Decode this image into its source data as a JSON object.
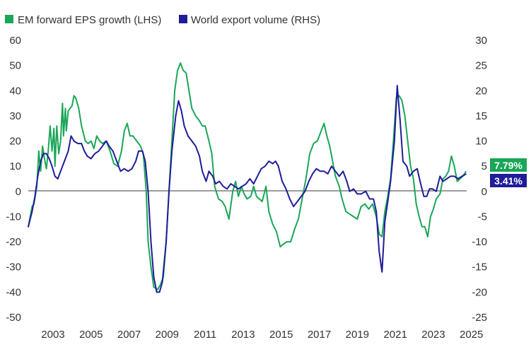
{
  "chart_data": {
    "type": "line",
    "title": "",
    "x_ticks": [
      "2003",
      "2005",
      "2007",
      "2009",
      "2011",
      "2013",
      "2015",
      "2017",
      "2019",
      "2021",
      "2023",
      "2025"
    ],
    "xlim": [
      2001.7,
      2024.75
    ],
    "left_axis": {
      "ylim": [
        -50,
        60
      ],
      "ticks": [
        "60",
        "50",
        "40",
        "30",
        "20",
        "10",
        "0",
        "-10",
        "-20",
        "-30",
        "-40",
        "-50"
      ]
    },
    "right_axis": {
      "ylim": [
        -25,
        30
      ],
      "ticks": [
        "30",
        "25",
        "20",
        "15",
        "10",
        "5",
        "0",
        "-5",
        "-10",
        "-15",
        "-20",
        "-25"
      ]
    },
    "zero_line": true,
    "legend": {
      "placement": "top-left",
      "items": [
        "EM forward EPS growth (LHS)",
        "World export volume (RHS)"
      ]
    },
    "series": [
      {
        "name": "EM forward EPS growth (LHS)",
        "axis": "left",
        "color": "#1aa658",
        "last_value_label": "7.79%",
        "points": [
          [
            2001.7,
            -14
          ],
          [
            2001.9,
            -6
          ],
          [
            2002.0,
            -5
          ],
          [
            2002.15,
            2
          ],
          [
            2002.25,
            16
          ],
          [
            2002.35,
            8
          ],
          [
            2002.45,
            18
          ],
          [
            2002.55,
            13
          ],
          [
            2002.65,
            9
          ],
          [
            2002.75,
            16
          ],
          [
            2002.85,
            26
          ],
          [
            2002.95,
            16
          ],
          [
            2003.05,
            25
          ],
          [
            2003.1,
            10
          ],
          [
            2003.2,
            26
          ],
          [
            2003.3,
            15
          ],
          [
            2003.4,
            20
          ],
          [
            2003.5,
            35
          ],
          [
            2003.55,
            22
          ],
          [
            2003.65,
            33
          ],
          [
            2003.7,
            24
          ],
          [
            2003.8,
            32
          ],
          [
            2003.9,
            33
          ],
          [
            2004.0,
            34
          ],
          [
            2004.1,
            38
          ],
          [
            2004.2,
            37
          ],
          [
            2004.35,
            33
          ],
          [
            2004.5,
            26
          ],
          [
            2004.7,
            20
          ],
          [
            2004.85,
            19
          ],
          [
            2005.0,
            20
          ],
          [
            2005.15,
            17
          ],
          [
            2005.3,
            22
          ],
          [
            2005.45,
            20
          ],
          [
            2005.6,
            19
          ],
          [
            2005.8,
            20
          ],
          [
            2006.0,
            16
          ],
          [
            2006.2,
            11
          ],
          [
            2006.4,
            10
          ],
          [
            2006.6,
            16
          ],
          [
            2006.75,
            24
          ],
          [
            2006.9,
            27
          ],
          [
            2007.05,
            22
          ],
          [
            2007.2,
            22
          ],
          [
            2007.4,
            20
          ],
          [
            2007.6,
            18
          ],
          [
            2007.75,
            15
          ],
          [
            2007.9,
            0
          ],
          [
            2008.0,
            -20
          ],
          [
            2008.15,
            -30
          ],
          [
            2008.3,
            -38
          ],
          [
            2008.5,
            -39
          ],
          [
            2008.65,
            -37
          ],
          [
            2008.8,
            -34
          ],
          [
            2008.95,
            -20
          ],
          [
            2009.1,
            0
          ],
          [
            2009.25,
            20
          ],
          [
            2009.4,
            40
          ],
          [
            2009.55,
            48
          ],
          [
            2009.7,
            51
          ],
          [
            2009.85,
            48
          ],
          [
            2010.0,
            47
          ],
          [
            2010.15,
            40
          ],
          [
            2010.3,
            33
          ],
          [
            2010.5,
            30
          ],
          [
            2010.7,
            28
          ],
          [
            2010.85,
            26
          ],
          [
            2011.0,
            26
          ],
          [
            2011.2,
            20
          ],
          [
            2011.35,
            15
          ],
          [
            2011.5,
            2
          ],
          [
            2011.7,
            -3
          ],
          [
            2011.9,
            -4
          ],
          [
            2012.05,
            -6
          ],
          [
            2012.25,
            -11
          ],
          [
            2012.45,
            0
          ],
          [
            2012.6,
            4
          ],
          [
            2012.75,
            -2
          ],
          [
            2012.9,
            2
          ],
          [
            2013.05,
            -1
          ],
          [
            2013.2,
            -3
          ],
          [
            2013.4,
            -2
          ],
          [
            2013.55,
            2
          ],
          [
            2013.7,
            -2
          ],
          [
            2013.85,
            -3
          ],
          [
            2014.0,
            -4
          ],
          [
            2014.2,
            2
          ],
          [
            2014.35,
            -8
          ],
          [
            2014.55,
            -13
          ],
          [
            2014.75,
            -16
          ],
          [
            2014.95,
            -22
          ],
          [
            2015.1,
            -21
          ],
          [
            2015.3,
            -20
          ],
          [
            2015.5,
            -20
          ],
          [
            2015.7,
            -15
          ],
          [
            2015.9,
            -11
          ],
          [
            2016.1,
            -3
          ],
          [
            2016.3,
            5
          ],
          [
            2016.5,
            15
          ],
          [
            2016.7,
            19
          ],
          [
            2016.9,
            20
          ],
          [
            2017.1,
            24
          ],
          [
            2017.25,
            27
          ],
          [
            2017.4,
            22
          ],
          [
            2017.55,
            18
          ],
          [
            2017.7,
            12
          ],
          [
            2017.85,
            6
          ],
          [
            2018.05,
            2
          ],
          [
            2018.2,
            -3
          ],
          [
            2018.4,
            -8
          ],
          [
            2018.6,
            -9
          ],
          [
            2018.8,
            -10
          ],
          [
            2019.0,
            -11
          ],
          [
            2019.2,
            -6
          ],
          [
            2019.4,
            -5
          ],
          [
            2019.6,
            -7
          ],
          [
            2019.8,
            -5
          ],
          [
            2020.0,
            -10
          ],
          [
            2020.15,
            -17
          ],
          [
            2020.3,
            -18
          ],
          [
            2020.45,
            -8
          ],
          [
            2020.6,
            -2
          ],
          [
            2020.75,
            5
          ],
          [
            2020.9,
            20
          ],
          [
            2021.05,
            37
          ],
          [
            2021.2,
            38
          ],
          [
            2021.35,
            36
          ],
          [
            2021.5,
            30
          ],
          [
            2021.65,
            20
          ],
          [
            2021.8,
            10
          ],
          [
            2021.95,
            5
          ],
          [
            2022.1,
            -5
          ],
          [
            2022.25,
            -10
          ],
          [
            2022.4,
            -14
          ],
          [
            2022.55,
            -14
          ],
          [
            2022.7,
            -18
          ],
          [
            2022.85,
            -10
          ],
          [
            2023.0,
            -7
          ],
          [
            2023.15,
            -3
          ],
          [
            2023.35,
            -1
          ],
          [
            2023.5,
            5
          ],
          [
            2023.65,
            6
          ],
          [
            2023.8,
            8
          ],
          [
            2023.95,
            14
          ],
          [
            2024.1,
            10
          ],
          [
            2024.25,
            4
          ],
          [
            2024.4,
            5
          ],
          [
            2024.55,
            6
          ],
          [
            2024.7,
            7.79
          ]
        ]
      },
      {
        "name": "World export volume (RHS)",
        "axis": "right",
        "color": "#1f1c99",
        "last_value_label": "3.41%",
        "points": [
          [
            2001.7,
            -7
          ],
          [
            2001.9,
            -4
          ],
          [
            2002.05,
            -1
          ],
          [
            2002.2,
            3
          ],
          [
            2002.35,
            6
          ],
          [
            2002.5,
            7.5
          ],
          [
            2002.65,
            7.5
          ],
          [
            2002.8,
            6.5
          ],
          [
            2002.95,
            5
          ],
          [
            2003.1,
            3
          ],
          [
            2003.25,
            2.5
          ],
          [
            2003.4,
            4
          ],
          [
            2003.6,
            6
          ],
          [
            2003.8,
            8
          ],
          [
            2003.95,
            11
          ],
          [
            2004.1,
            10
          ],
          [
            2004.3,
            9.5
          ],
          [
            2004.5,
            9.5
          ],
          [
            2004.65,
            8
          ],
          [
            2004.8,
            7
          ],
          [
            2005.0,
            6.5
          ],
          [
            2005.2,
            7.5
          ],
          [
            2005.4,
            8
          ],
          [
            2005.6,
            9
          ],
          [
            2005.8,
            10
          ],
          [
            2005.95,
            9
          ],
          [
            2006.15,
            8
          ],
          [
            2006.35,
            6
          ],
          [
            2006.55,
            4
          ],
          [
            2006.75,
            4.5
          ],
          [
            2006.95,
            4
          ],
          [
            2007.15,
            4.5
          ],
          [
            2007.35,
            6
          ],
          [
            2007.5,
            8
          ],
          [
            2007.7,
            8
          ],
          [
            2007.85,
            6
          ],
          [
            2008.0,
            0
          ],
          [
            2008.15,
            -10
          ],
          [
            2008.3,
            -17
          ],
          [
            2008.45,
            -20
          ],
          [
            2008.6,
            -20
          ],
          [
            2008.75,
            -18
          ],
          [
            2008.95,
            -10
          ],
          [
            2009.1,
            0
          ],
          [
            2009.25,
            8
          ],
          [
            2009.45,
            15
          ],
          [
            2009.6,
            18
          ],
          [
            2009.75,
            16
          ],
          [
            2009.9,
            13
          ],
          [
            2010.1,
            11
          ],
          [
            2010.3,
            10
          ],
          [
            2010.5,
            9
          ],
          [
            2010.7,
            7
          ],
          [
            2010.85,
            4
          ],
          [
            2011.05,
            2
          ],
          [
            2011.2,
            4
          ],
          [
            2011.4,
            3
          ],
          [
            2011.55,
            1.5
          ],
          [
            2011.75,
            2
          ],
          [
            2011.95,
            1
          ],
          [
            2012.15,
            0.5
          ],
          [
            2012.35,
            1.5
          ],
          [
            2012.55,
            1
          ],
          [
            2012.75,
            0.5
          ],
          [
            2012.95,
            1
          ],
          [
            2013.15,
            1.5
          ],
          [
            2013.35,
            2.5
          ],
          [
            2013.55,
            1.5
          ],
          [
            2013.75,
            3
          ],
          [
            2013.95,
            4.5
          ],
          [
            2014.15,
            5
          ],
          [
            2014.35,
            6
          ],
          [
            2014.55,
            5.5
          ],
          [
            2014.7,
            6
          ],
          [
            2014.85,
            5
          ],
          [
            2015.05,
            2
          ],
          [
            2015.25,
            0.5
          ],
          [
            2015.45,
            -1.5
          ],
          [
            2015.65,
            -3
          ],
          [
            2015.85,
            -2
          ],
          [
            2016.05,
            -1
          ],
          [
            2016.25,
            0
          ],
          [
            2016.45,
            2
          ],
          [
            2016.65,
            3.5
          ],
          [
            2016.85,
            4.5
          ],
          [
            2017.05,
            4
          ],
          [
            2017.25,
            4
          ],
          [
            2017.45,
            3.5
          ],
          [
            2017.65,
            5
          ],
          [
            2017.85,
            4
          ],
          [
            2018.05,
            3
          ],
          [
            2018.25,
            4
          ],
          [
            2018.45,
            2
          ],
          [
            2018.6,
            0
          ],
          [
            2018.8,
            0.5
          ],
          [
            2019.0,
            -0.5
          ],
          [
            2019.2,
            -0.5
          ],
          [
            2019.45,
            0
          ],
          [
            2019.65,
            -1.5
          ],
          [
            2019.85,
            -1.5
          ],
          [
            2020.0,
            -4
          ],
          [
            2020.15,
            -12
          ],
          [
            2020.3,
            -16
          ],
          [
            2020.45,
            -6
          ],
          [
            2020.6,
            -2
          ],
          [
            2020.75,
            2
          ],
          [
            2020.95,
            10
          ],
          [
            2021.1,
            21
          ],
          [
            2021.25,
            14
          ],
          [
            2021.4,
            6
          ],
          [
            2021.6,
            5
          ],
          [
            2021.75,
            3
          ],
          [
            2021.95,
            4
          ],
          [
            2022.15,
            4.5
          ],
          [
            2022.3,
            2
          ],
          [
            2022.5,
            -1
          ],
          [
            2022.65,
            -1
          ],
          [
            2022.8,
            0.5
          ],
          [
            2022.95,
            0.5
          ],
          [
            2023.15,
            0
          ],
          [
            2023.35,
            3
          ],
          [
            2023.5,
            2
          ],
          [
            2023.7,
            2.5
          ],
          [
            2023.9,
            3
          ],
          [
            2024.1,
            3
          ],
          [
            2024.3,
            2.5
          ],
          [
            2024.5,
            3
          ],
          [
            2024.7,
            3.41
          ]
        ]
      }
    ]
  }
}
